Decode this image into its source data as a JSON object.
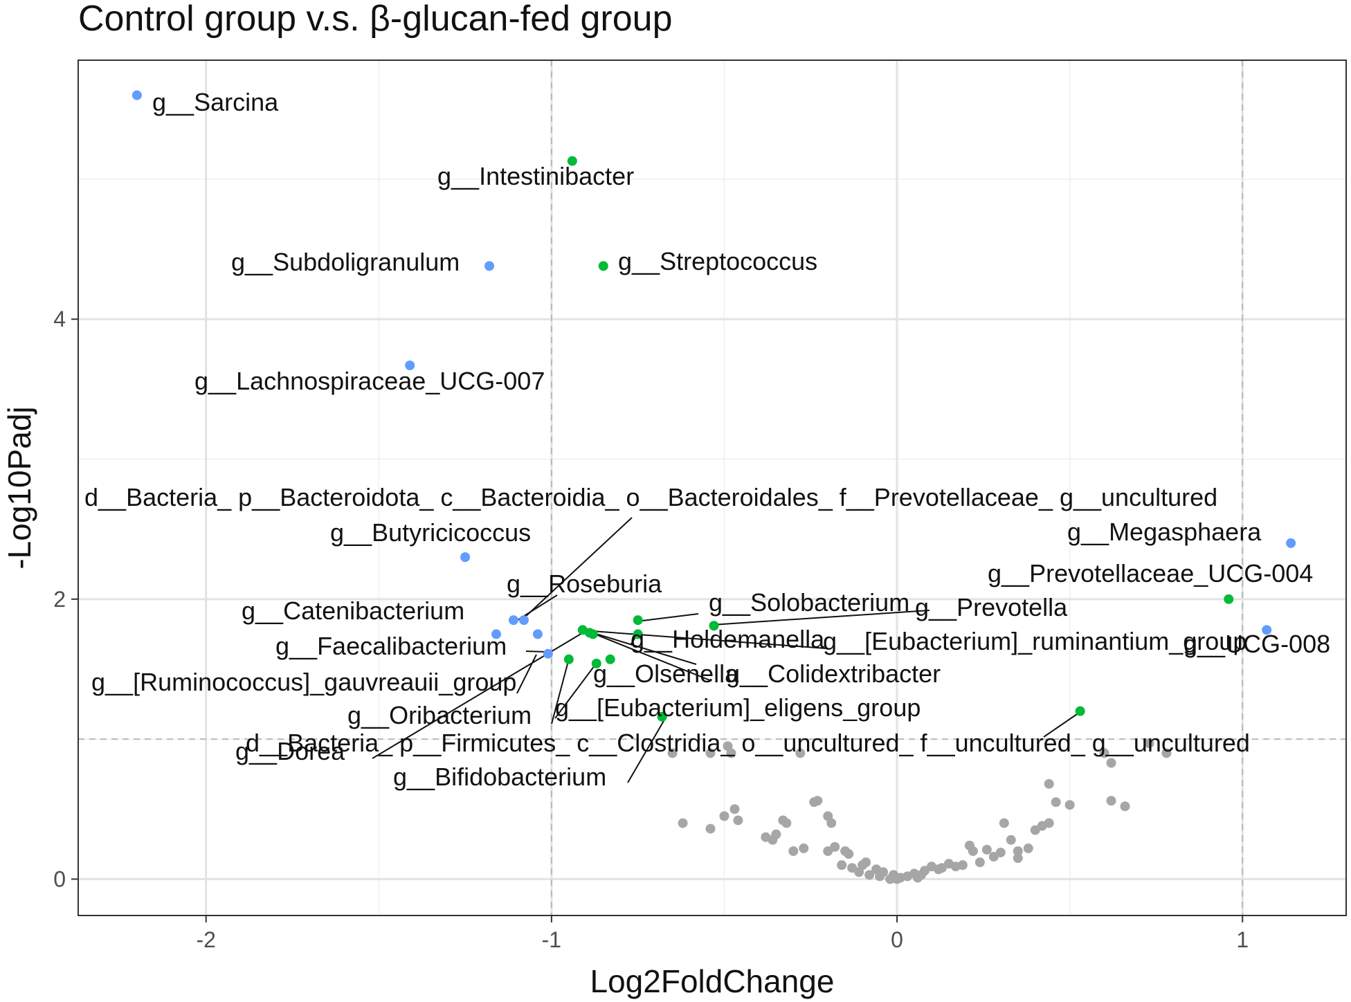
{
  "chart_data": {
    "type": "scatter",
    "title": "Control group v.s. β-glucan-fed group",
    "xlabel": "Log2FoldChange",
    "ylabel": "-Log10Padj",
    "xlim": [
      -2.37,
      1.3
    ],
    "ylim": [
      -0.26,
      5.85
    ],
    "x_ticks": [
      -2,
      -1,
      0,
      1
    ],
    "y_ticks": [
      0,
      2,
      4
    ],
    "x_tick_labels": [
      "-2",
      "-1",
      "0",
      "1"
    ],
    "y_tick_labels": [
      "0",
      "2",
      "4"
    ],
    "minor_x": [
      -1.5,
      -0.5,
      0.5
    ],
    "minor_y": [
      1,
      3,
      5
    ],
    "grid": true,
    "threshold_lines": {
      "x": [
        -1,
        1
      ],
      "y": [
        1
      ]
    },
    "colors": {
      "blue": "#619cff",
      "green": "#00ba38",
      "grey": "#a6a6a6"
    },
    "labeled_points": [
      {
        "label": "g__Sarcina",
        "x": -2.2,
        "y": 5.6,
        "color": "blue"
      },
      {
        "label": "g__Intestinibacter",
        "x": -0.94,
        "y": 5.13,
        "color": "green"
      },
      {
        "label": "g__Subdoligranulum",
        "x": -1.18,
        "y": 4.38,
        "color": "blue"
      },
      {
        "label": "g__Streptococcus",
        "x": -0.85,
        "y": 4.38,
        "color": "green"
      },
      {
        "label": "g__Lachnospiraceae_UCG-007",
        "x": -1.41,
        "y": 3.67,
        "color": "blue"
      },
      {
        "label": "d__Bacteria_ p__Bacteroidota_ c__Bacteroidia_ o__Bacteroidales_ f__Prevotellaceae_ g__uncultured",
        "x": -1.08,
        "y": 1.85,
        "color": "blue"
      },
      {
        "label": "g__Butyricicoccus",
        "x": -1.25,
        "y": 2.3,
        "color": "blue"
      },
      {
        "label": "g__Megasphaera",
        "x": 1.14,
        "y": 2.4,
        "color": "blue"
      },
      {
        "label": "g__Prevotellaceae_UCG-004",
        "x": 0.96,
        "y": 2.0,
        "color": "green"
      },
      {
        "label": "g__Roseburia",
        "x": -1.11,
        "y": 1.85,
        "color": "blue"
      },
      {
        "label": "g__Catenibacterium",
        "x": -1.16,
        "y": 1.75,
        "color": "blue"
      },
      {
        "label": "g__Solobacterium",
        "x": -0.75,
        "y": 1.85,
        "color": "green"
      },
      {
        "label": "g__Prevotella",
        "x": -0.53,
        "y": 1.81,
        "color": "green"
      },
      {
        "label": "g__Holdemanella",
        "x": -0.75,
        "y": 1.75,
        "color": "green"
      },
      {
        "label": "g__[Eubacterium]_ruminantium_group",
        "x": -0.91,
        "y": 1.78,
        "color": "green"
      },
      {
        "label": "g__UCG-008",
        "x": 1.07,
        "y": 1.78,
        "color": "blue"
      },
      {
        "label": "g__Faecalibacterium",
        "x": -1.01,
        "y": 1.61,
        "color": "blue"
      },
      {
        "label": "g__Colidextribacter",
        "x": -0.88,
        "y": 1.75,
        "color": "green"
      },
      {
        "label": "g__Olsenella",
        "x": -0.83,
        "y": 1.57,
        "color": "green"
      },
      {
        "label": "g__[Ruminococcus]_gauvreauii_group",
        "x": -1.04,
        "y": 1.75,
        "color": "blue"
      },
      {
        "label": "g__Oribacterium",
        "x": -0.95,
        "y": 1.57,
        "color": "green"
      },
      {
        "label": "g__[Eubacterium]_eligens_group",
        "x": -0.87,
        "y": 1.54,
        "color": "green"
      },
      {
        "label": "d__Bacteria_ p__Firmicutes_ c__Clostridia_ o__uncultured_ f__uncultured_ g__uncultured",
        "x": 0.53,
        "y": 1.2,
        "color": "green"
      },
      {
        "label": "g__Dorea",
        "x": -0.89,
        "y": 1.76,
        "color": "green"
      },
      {
        "label": "g__Bifidobacterium",
        "x": -0.68,
        "y": 1.16,
        "color": "green"
      }
    ],
    "background_points": [
      [
        -0.65,
        0.9
      ],
      [
        -0.54,
        0.9
      ],
      [
        -0.49,
        0.95
      ],
      [
        -0.48,
        0.9
      ],
      [
        -0.28,
        0.9
      ],
      [
        -0.62,
        0.4
      ],
      [
        -0.54,
        0.36
      ],
      [
        -0.5,
        0.45
      ],
      [
        -0.47,
        0.5
      ],
      [
        -0.46,
        0.42
      ],
      [
        -0.38,
        0.3
      ],
      [
        -0.36,
        0.28
      ],
      [
        -0.35,
        0.32
      ],
      [
        -0.33,
        0.42
      ],
      [
        -0.3,
        0.2
      ],
      [
        -0.32,
        0.4
      ],
      [
        -0.27,
        0.22
      ],
      [
        -0.24,
        0.55
      ],
      [
        -0.23,
        0.56
      ],
      [
        -0.2,
        0.45
      ],
      [
        -0.2,
        0.2
      ],
      [
        -0.19,
        0.4
      ],
      [
        -0.18,
        0.23
      ],
      [
        -0.16,
        0.1
      ],
      [
        -0.15,
        0.2
      ],
      [
        -0.13,
        0.08
      ],
      [
        -0.11,
        0.05
      ],
      [
        -0.1,
        0.1
      ],
      [
        -0.08,
        0.03
      ],
      [
        -0.06,
        0.07
      ],
      [
        -0.05,
        0.02
      ],
      [
        -0.04,
        0.05
      ],
      [
        -0.02,
        0.0
      ],
      [
        -0.01,
        0.03
      ],
      [
        0.0,
        0.0
      ],
      [
        0.01,
        0.01
      ],
      [
        0.03,
        0.02
      ],
      [
        0.05,
        0.04
      ],
      [
        0.06,
        0.01
      ],
      [
        0.08,
        0.06
      ],
      [
        0.1,
        0.09
      ],
      [
        0.13,
        0.08
      ],
      [
        0.15,
        0.11
      ],
      [
        0.17,
        0.09
      ],
      [
        0.19,
        0.1
      ],
      [
        0.21,
        0.24
      ],
      [
        0.22,
        0.2
      ],
      [
        0.24,
        0.12
      ],
      [
        0.26,
        0.21
      ],
      [
        0.28,
        0.16
      ],
      [
        0.3,
        0.19
      ],
      [
        0.31,
        0.4
      ],
      [
        0.33,
        0.28
      ],
      [
        0.35,
        0.2
      ],
      [
        0.38,
        0.22
      ],
      [
        0.4,
        0.35
      ],
      [
        0.42,
        0.38
      ],
      [
        0.44,
        0.4
      ],
      [
        0.44,
        0.68
      ],
      [
        0.46,
        0.55
      ],
      [
        0.5,
        0.53
      ],
      [
        0.6,
        0.9
      ],
      [
        0.62,
        0.83
      ],
      [
        0.62,
        0.56
      ],
      [
        0.66,
        0.52
      ],
      [
        0.73,
        0.97
      ],
      [
        0.78,
        0.9
      ],
      [
        -0.14,
        0.18
      ],
      [
        0.07,
        0.03
      ],
      [
        -0.09,
        0.12
      ],
      [
        0.12,
        0.07
      ],
      [
        0.35,
        0.15
      ]
    ]
  }
}
